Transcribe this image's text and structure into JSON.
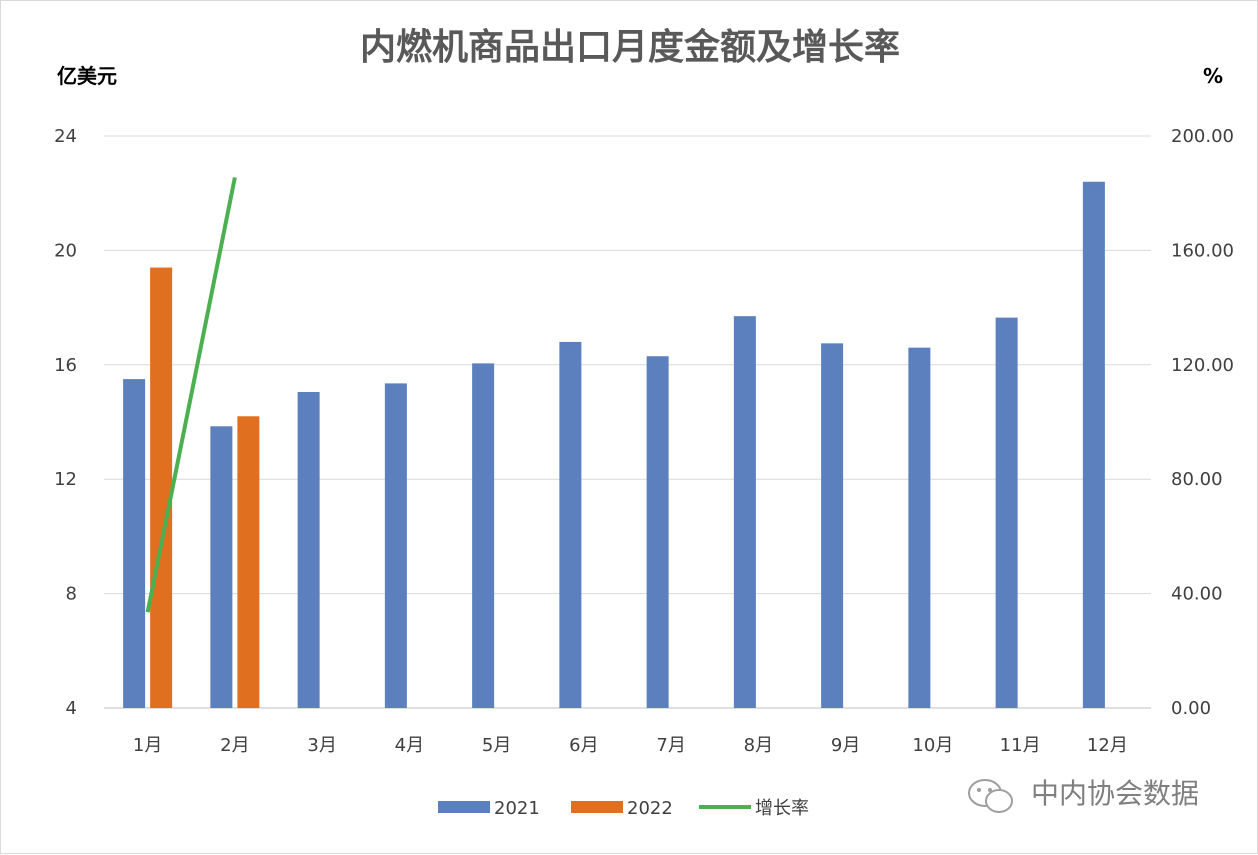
{
  "chart_data": {
    "type": "bar",
    "title": "内燃机商品出口月度金额及增长率",
    "ylabel_left": "亿美元",
    "ylabel_right": "%",
    "categories": [
      "1月",
      "2月",
      "3月",
      "4月",
      "5月",
      "6月",
      "7月",
      "8月",
      "9月",
      "10月",
      "11月",
      "12月"
    ],
    "series": [
      {
        "name": "2021",
        "type": "bar",
        "axis": "left",
        "color": "#5b80bd",
        "values": [
          15.5,
          13.85,
          15.05,
          15.35,
          16.05,
          16.8,
          16.3,
          17.7,
          16.75,
          16.6,
          17.65,
          22.4
        ]
      },
      {
        "name": "2022",
        "type": "bar",
        "axis": "left",
        "color": "#e07020",
        "values": [
          19.4,
          14.2,
          null,
          null,
          null,
          null,
          null,
          null,
          null,
          null,
          null,
          null
        ]
      },
      {
        "name": "增长率",
        "type": "line",
        "axis": "right",
        "color": "#4caf50",
        "values": [
          33.5,
          185.5,
          null,
          null,
          null,
          null,
          null,
          null,
          null,
          null,
          null,
          null
        ]
      }
    ],
    "y_left": {
      "min": 4,
      "max": 24,
      "ticks": [
        "4",
        "8",
        "12",
        "16",
        "20",
        "24"
      ]
    },
    "y_right": {
      "min": 0,
      "max": 200,
      "ticks": [
        "0.00",
        "40.00",
        "80.00",
        "120.00",
        "160.00",
        "200.00"
      ]
    },
    "grid": true,
    "legend_position": "bottom"
  },
  "watermark": {
    "text": "中内协会数据",
    "icon": "wechat-icon"
  }
}
